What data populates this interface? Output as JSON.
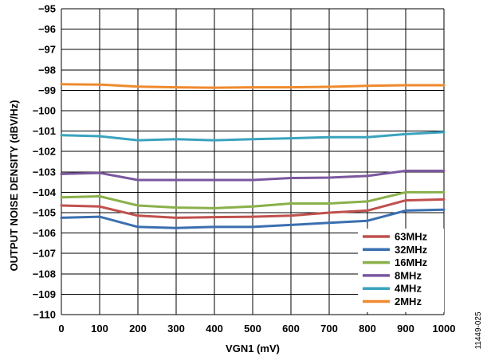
{
  "chart_data": {
    "type": "line",
    "xlabel": "VGN1 (mV)",
    "ylabel": "OUTPUT NOISE DENSITY (dBV/Hz)",
    "xlim": [
      0,
      1000
    ],
    "ylim": [
      -110,
      -95
    ],
    "x_ticks": [
      "0",
      "100",
      "200",
      "300",
      "400",
      "500",
      "600",
      "700",
      "800",
      "900",
      "1000"
    ],
    "y_ticks": [
      "−95",
      "−96",
      "−97",
      "−98",
      "−99",
      "−100",
      "−101",
      "−102",
      "−103",
      "−104",
      "−105",
      "−106",
      "−107",
      "−108",
      "−109",
      "−110"
    ],
    "grid": true,
    "legend_position": "bottom-right",
    "figure_id": "11449-025",
    "x": [
      0,
      100,
      200,
      300,
      400,
      500,
      600,
      700,
      800,
      900,
      1000
    ],
    "series": [
      {
        "name": "63MHz",
        "color": "#c0504d",
        "values": [
          -104.65,
          -104.7,
          -105.15,
          -105.25,
          -105.22,
          -105.2,
          -105.15,
          -105.0,
          -104.9,
          -104.4,
          -104.35
        ]
      },
      {
        "name": "32MHz",
        "color": "#3a6fb0",
        "values": [
          -105.25,
          -105.2,
          -105.7,
          -105.75,
          -105.7,
          -105.7,
          -105.6,
          -105.5,
          -105.4,
          -104.9,
          -104.85
        ]
      },
      {
        "name": "16MHz",
        "color": "#8ab04a",
        "values": [
          -104.25,
          -104.2,
          -104.65,
          -104.75,
          -104.78,
          -104.7,
          -104.55,
          -104.55,
          -104.45,
          -104.0,
          -104.0
        ]
      },
      {
        "name": "8MHz",
        "color": "#7b579f",
        "values": [
          -103.1,
          -103.05,
          -103.4,
          -103.4,
          -103.4,
          -103.4,
          -103.3,
          -103.28,
          -103.2,
          -102.95,
          -102.95
        ]
      },
      {
        "name": "4MHz",
        "color": "#3aa3be",
        "values": [
          -101.2,
          -101.25,
          -101.45,
          -101.4,
          -101.45,
          -101.4,
          -101.35,
          -101.3,
          -101.3,
          -101.15,
          -101.05
        ]
      },
      {
        "name": "2MHz",
        "color": "#ef8a2e",
        "values": [
          -98.7,
          -98.72,
          -98.82,
          -98.85,
          -98.87,
          -98.85,
          -98.85,
          -98.83,
          -98.78,
          -98.75,
          -98.75
        ]
      }
    ]
  }
}
